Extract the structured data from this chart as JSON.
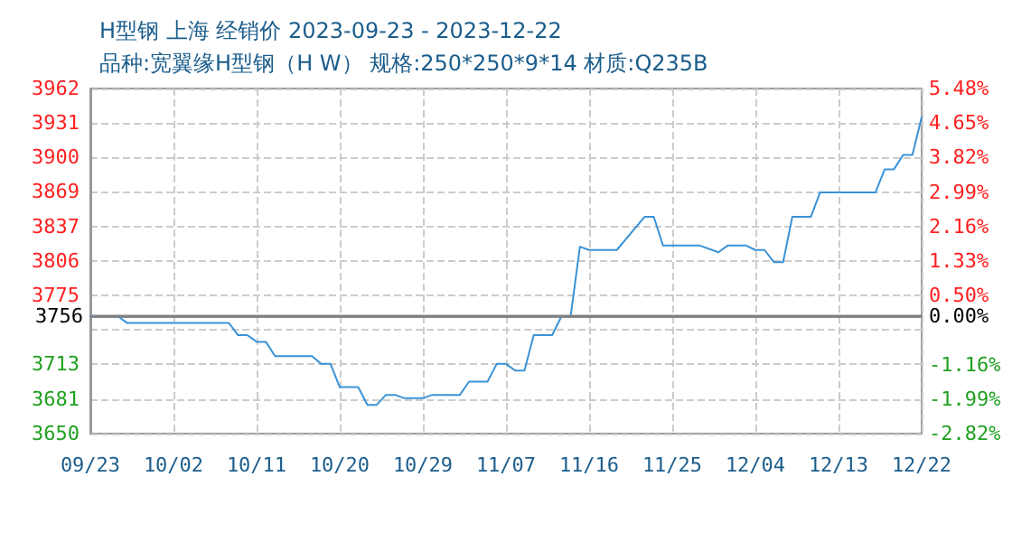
{
  "chart_data": {
    "type": "line",
    "title": "H型钢 上海 经销价 2023-09-23 - 2023-12-22",
    "subtitle": "品种:宽翼缘H型钢（H W） 规格:250*250*9*14 材质:Q235B",
    "x": [
      "2023-09-23",
      "2023-09-26",
      "2023-09-27",
      "2023-10-08",
      "2023-10-09",
      "2023-10-10",
      "2023-10-11",
      "2023-10-12",
      "2023-10-13",
      "2023-10-17",
      "2023-10-18",
      "2023-10-19",
      "2023-10-20",
      "2023-10-22",
      "2023-10-23",
      "2023-10-24",
      "2023-10-25",
      "2023-10-26",
      "2023-10-27",
      "2023-10-29",
      "2023-10-30",
      "2023-11-02",
      "2023-11-03",
      "2023-11-05",
      "2023-11-06",
      "2023-11-07",
      "2023-11-08",
      "2023-11-09",
      "2023-11-10",
      "2023-11-12",
      "2023-11-13",
      "2023-11-14",
      "2023-11-15",
      "2023-11-16",
      "2023-11-19",
      "2023-11-22",
      "2023-11-23",
      "2023-11-24",
      "2023-11-28",
      "2023-11-30",
      "2023-12-01",
      "2023-12-03",
      "2023-12-04",
      "2023-12-05",
      "2023-12-06",
      "2023-12-07",
      "2023-12-08",
      "2023-12-10",
      "2023-12-11",
      "2023-12-17",
      "2023-12-18",
      "2023-12-19",
      "2023-12-20",
      "2023-12-21",
      "2023-12-22"
    ],
    "series": [
      {
        "color": "#3a92d6",
        "values": [
          3756,
          3756,
          3750,
          3750,
          3739,
          3739,
          3733,
          3733,
          3720,
          3720,
          3713,
          3713,
          3692,
          3692,
          3676,
          3676,
          3685,
          3685,
          3682,
          3682,
          3685,
          3685,
          3697,
          3697,
          3713,
          3713,
          3707,
          3707,
          3739,
          3739,
          3756,
          3756,
          3819,
          3816,
          3816,
          3846,
          3846,
          3820,
          3820,
          3814,
          3820,
          3820,
          3816,
          3816,
          3805,
          3805,
          3846,
          3846,
          3868,
          3868,
          3889,
          3889,
          3902,
          3902,
          3936
        ]
      }
    ],
    "xlim": [
      "2023-09-23",
      "2023-12-22"
    ],
    "xticks": [
      {
        "value": "2023-09-23",
        "label": "09/23"
      },
      {
        "value": "2023-10-02",
        "label": "10/02"
      },
      {
        "value": "2023-10-11",
        "label": "10/11"
      },
      {
        "value": "2023-10-20",
        "label": "10/20"
      },
      {
        "value": "2023-10-29",
        "label": "10/29"
      },
      {
        "value": "2023-11-07",
        "label": "11/07"
      },
      {
        "value": "2023-11-16",
        "label": "11/16"
      },
      {
        "value": "2023-11-25",
        "label": "11/25"
      },
      {
        "value": "2023-12-04",
        "label": "12/04"
      },
      {
        "value": "2023-12-13",
        "label": "12/13"
      },
      {
        "value": "2023-12-22",
        "label": "12/22"
      }
    ],
    "ylim": [
      3650,
      3962
    ],
    "yticks": [
      {
        "value": 3650,
        "label": "3650"
      },
      {
        "value": 3681.2,
        "label": "3681"
      },
      {
        "value": 3713,
        "label": "3713"
      },
      {
        "value": 3743.6,
        "label": null
      },
      {
        "value": 3774.8,
        "label": "3775"
      },
      {
        "value": 3806,
        "label": "3806"
      },
      {
        "value": 3837.2,
        "label": "3837"
      },
      {
        "value": 3869,
        "label": "3869"
      },
      {
        "value": 3899.6,
        "label": "3900"
      },
      {
        "value": 3930.8,
        "label": "3931"
      },
      {
        "value": 3962,
        "label": "3962"
      }
    ],
    "y2lim": [
      -2.82,
      5.48
    ],
    "y2ticks": [
      {
        "value": -2.82,
        "label": "-2.82%"
      },
      {
        "value": -1.99,
        "label": "-1.99%"
      },
      {
        "value": -1.16,
        "label": "-1.16%"
      },
      {
        "value": 0,
        "label": "0.00%"
      },
      {
        "value": 0.5,
        "label": "0.50%"
      },
      {
        "value": 1.33,
        "label": "1.33%"
      },
      {
        "value": 2.16,
        "label": "2.16%"
      },
      {
        "value": 2.99,
        "label": "2.99%"
      },
      {
        "value": 3.82,
        "label": "3.82%"
      },
      {
        "value": 4.65,
        "label": "4.65%"
      },
      {
        "value": 5.48,
        "label": "5.48%"
      }
    ],
    "ref_lines": [
      {
        "axis": "y",
        "value": 3756,
        "label": "3756",
        "color": "#808080"
      }
    ],
    "grid": true,
    "marker": "none",
    "line_style": "solid"
  }
}
